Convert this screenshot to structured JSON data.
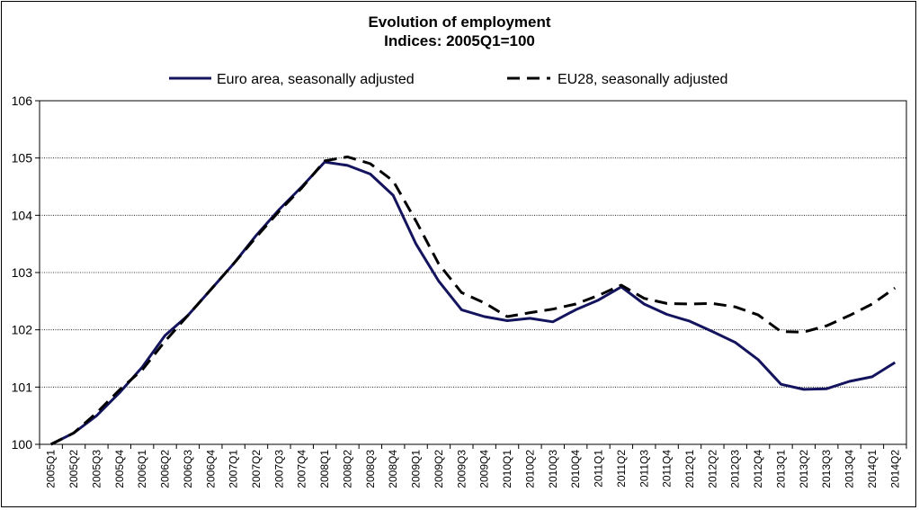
{
  "chart_data": {
    "type": "line",
    "title": "Evolution of employment",
    "subtitle": "Indices: 2005Q1=100",
    "xlabel": "",
    "ylabel": "",
    "ylim": [
      100,
      106
    ],
    "yticks": [
      100,
      101,
      102,
      103,
      104,
      105,
      106
    ],
    "grid": true,
    "legend_position": "top",
    "categories": [
      "2005Q1",
      "2005Q2",
      "2005Q3",
      "2005Q4",
      "2006Q1",
      "2006Q2",
      "2006Q3",
      "2006Q4",
      "2007Q1",
      "2007Q2",
      "2007Q3",
      "2007Q4",
      "2008Q1",
      "2008Q2",
      "2008Q3",
      "2008Q4",
      "2009Q1",
      "2009Q2",
      "2009Q3",
      "2009Q4",
      "2010Q1",
      "2010Q2",
      "2010Q3",
      "2010Q4",
      "2011Q1",
      "2011Q2",
      "2011Q3",
      "2011Q4",
      "2012Q1",
      "2012Q2",
      "2012Q3",
      "2012Q4",
      "2013Q1",
      "2013Q2",
      "2013Q3",
      "2013Q4",
      "2014Q1",
      "2014Q2"
    ],
    "series": [
      {
        "name": "Euro area, seasonally adjusted",
        "color": "#14145e",
        "style": "solid",
        "values": [
          100.0,
          100.2,
          100.5,
          100.9,
          101.35,
          101.9,
          102.25,
          102.7,
          103.15,
          103.65,
          104.1,
          104.5,
          104.93,
          104.87,
          104.72,
          104.35,
          103.5,
          102.85,
          102.35,
          102.23,
          102.16,
          102.2,
          102.14,
          102.35,
          102.52,
          102.75,
          102.45,
          102.27,
          102.15,
          101.97,
          101.78,
          101.48,
          101.05,
          100.96,
          100.97,
          101.1,
          101.18,
          101.43
        ]
      },
      {
        "name": "EU28, seasonally adjusted",
        "color": "#000000",
        "style": "dashed",
        "values": [
          100.0,
          100.2,
          100.55,
          100.95,
          101.3,
          101.8,
          102.25,
          102.7,
          103.15,
          103.62,
          104.07,
          104.48,
          104.95,
          105.02,
          104.9,
          104.6,
          103.9,
          103.15,
          102.65,
          102.47,
          102.23,
          102.3,
          102.36,
          102.45,
          102.6,
          102.78,
          102.55,
          102.46,
          102.45,
          102.46,
          102.4,
          102.26,
          101.97,
          101.96,
          102.07,
          102.25,
          102.45,
          102.73
        ]
      }
    ]
  }
}
